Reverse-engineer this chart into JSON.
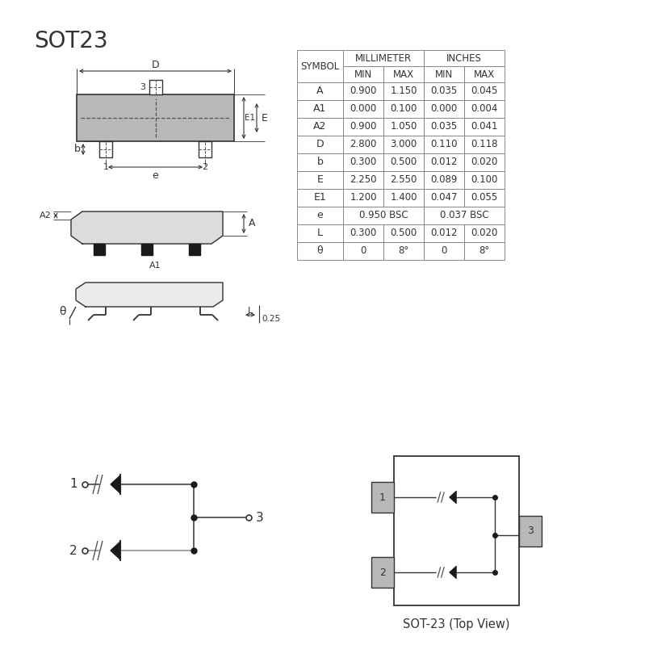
{
  "title": "SOT23",
  "title_fontsize": 20,
  "bg_color": "#ffffff",
  "lc": "#333333",
  "gray": "#b8b8b8",
  "dark": "#1a1a1a",
  "table_rows": [
    [
      "A",
      "0.900",
      "1.150",
      "0.035",
      "0.045"
    ],
    [
      "A1",
      "0.000",
      "0.100",
      "0.000",
      "0.004"
    ],
    [
      "A2",
      "0.900",
      "1.050",
      "0.035",
      "0.041"
    ],
    [
      "D",
      "2.800",
      "3.000",
      "0.110",
      "0.118"
    ],
    [
      "b",
      "0.300",
      "0.500",
      "0.012",
      "0.020"
    ],
    [
      "E",
      "2.250",
      "2.550",
      "0.089",
      "0.100"
    ],
    [
      "E1",
      "1.200",
      "1.400",
      "0.047",
      "0.055"
    ],
    [
      "e",
      "0.950 BSC",
      "",
      "0.037 BSC",
      ""
    ],
    [
      "L",
      "0.300",
      "0.500",
      "0.012",
      "0.020"
    ],
    [
      "θ",
      "0",
      "8°",
      "0",
      "8°"
    ]
  ]
}
